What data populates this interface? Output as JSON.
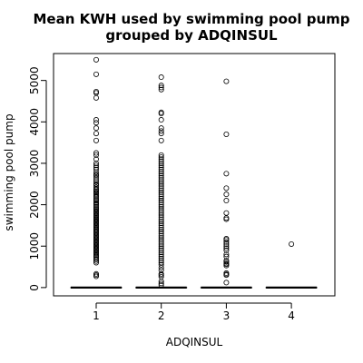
{
  "chart_data": {
    "type": "boxplot",
    "title_lines": [
      "Mean KWH used by swimming pool pump",
      "grouped by ADQINSUL"
    ],
    "xlabel": "ADQINSUL",
    "ylabel": "swimming pool pump",
    "categories": [
      "1",
      "2",
      "3",
      "4"
    ],
    "ylim": [
      -200,
      5650
    ],
    "yticks": [
      0,
      1000,
      2000,
      3000,
      4000,
      5000
    ],
    "grid": false,
    "boxes": [
      {
        "category": "1",
        "median": 0,
        "q1": 0,
        "q3": 0
      },
      {
        "category": "2",
        "median": 0,
        "q1": 0,
        "q3": 0
      },
      {
        "category": "3",
        "median": 0,
        "q1": 0,
        "q3": 0
      },
      {
        "category": "4",
        "median": 0,
        "q1": 0,
        "q3": 0
      }
    ],
    "outliers": [
      [
        5500,
        5150,
        4730,
        4700,
        4580,
        4050,
        3980,
        3850,
        3720,
        3550,
        3250,
        3200,
        3100,
        3000,
        2950,
        2900,
        2850,
        2780,
        2730,
        2700,
        2650,
        2600,
        2550,
        2500,
        2470,
        2420,
        2380,
        2350,
        2320,
        2290,
        2260,
        2220,
        2190,
        2150,
        2120,
        2090,
        2050,
        2020,
        1990,
        1950,
        1920,
        1890,
        1860,
        1830,
        1800,
        1770,
        1740,
        1710,
        1680,
        1650,
        1620,
        1590,
        1560,
        1530,
        1500,
        1470,
        1440,
        1410,
        1380,
        1350,
        1320,
        1290,
        1260,
        1230,
        1200,
        1170,
        1140,
        1110,
        1080,
        1050,
        1020,
        990,
        960,
        930,
        900,
        870,
        840,
        810,
        780,
        750,
        720,
        680,
        640,
        600,
        330,
        300,
        270
      ],
      [
        5080,
        4880,
        4830,
        4780,
        4230,
        4200,
        4050,
        3850,
        3780,
        3720,
        3550,
        3200,
        3150,
        3100,
        3050,
        3000,
        2950,
        2900,
        2850,
        2800,
        2750,
        2700,
        2650,
        2600,
        2550,
        2500,
        2450,
        2400,
        2350,
        2300,
        2250,
        2200,
        2150,
        2100,
        2050,
        2000,
        1950,
        1900,
        1850,
        1800,
        1750,
        1700,
        1650,
        1600,
        1550,
        1500,
        1450,
        1400,
        1350,
        1300,
        1250,
        1200,
        1150,
        1100,
        1050,
        1000,
        950,
        900,
        850,
        800,
        750,
        700,
        650,
        600,
        550,
        480,
        420,
        330,
        300,
        260,
        150,
        100,
        60
      ],
      [
        4980,
        3700,
        2750,
        2400,
        2250,
        2100,
        1800,
        1680,
        1650,
        1180,
        1150,
        1100,
        1050,
        1000,
        950,
        900,
        800,
        750,
        650,
        620,
        580,
        560,
        530,
        350,
        320,
        300,
        120
      ],
      [
        1050
      ]
    ]
  }
}
